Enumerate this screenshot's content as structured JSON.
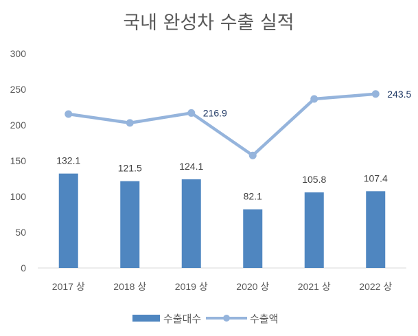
{
  "chart_data": {
    "type": "bar+line",
    "title": "국내 완성차 수출 실적",
    "categories": [
      "2017 상",
      "2018 상",
      "2019 상",
      "2020 상",
      "2021 상",
      "2022 상"
    ],
    "series": [
      {
        "name": "수출대수",
        "type": "bar",
        "color": "#4f86c0",
        "values": [
          132.1,
          121.5,
          124.1,
          82.1,
          105.8,
          107.4
        ],
        "labels": [
          "132.1",
          "121.5",
          "124.1",
          "82.1",
          "105.8",
          "107.4"
        ]
      },
      {
        "name": "수출액",
        "type": "line",
        "color": "#95b4dc",
        "values": [
          215.4,
          203.0,
          216.9,
          157.5,
          236.5,
          243.5
        ],
        "labels": [
          null,
          null,
          "216.9",
          null,
          null,
          "243.5"
        ]
      }
    ],
    "yticks": [
      "0",
      "50",
      "100",
      "150",
      "200",
      "250",
      "300"
    ],
    "ylim": [
      0,
      300
    ],
    "grid": false,
    "legend": "bottom"
  }
}
